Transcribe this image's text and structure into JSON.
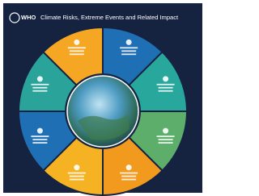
{
  "header": {
    "logo": "WHO",
    "title": "Climate Risks, Extreme Events and Related Impact"
  }
}
